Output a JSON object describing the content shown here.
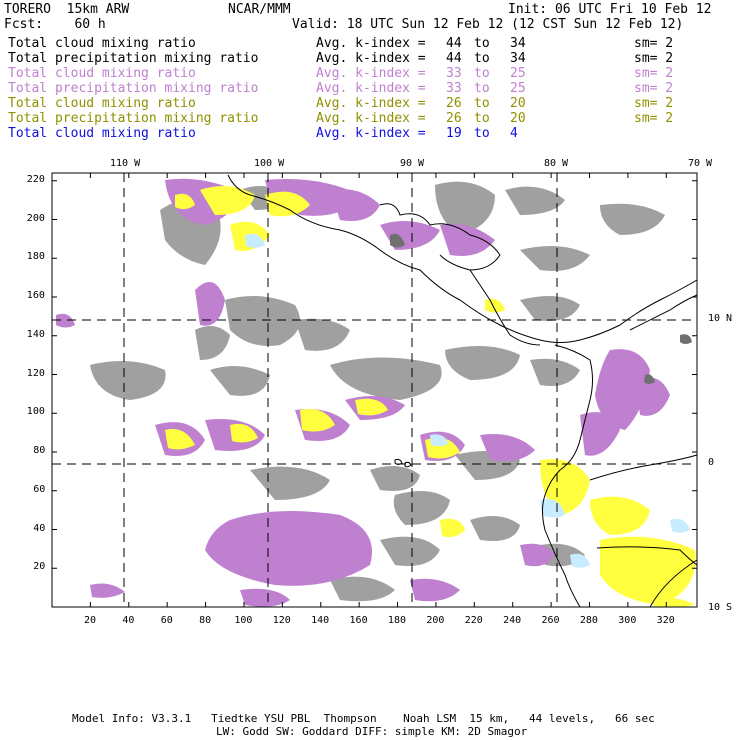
{
  "header": {
    "model": "TORERO  15km ARW",
    "org": "NCAR/MMM",
    "init": "Init: 06 UTC Fri 10 Feb 12",
    "fcst": "Fcst:    60 h",
    "valid": "Valid: 18 UTC Sun 12 Feb 12 (12 CST Sun 12 Feb 12)"
  },
  "legend": [
    {
      "field": "Total cloud mixing ratio",
      "stat": "Avg. k-index =",
      "from": "44",
      "to_word": "to",
      "to": "34",
      "sm": "sm= 2",
      "color": "#000000"
    },
    {
      "field": "Total precipitation mixing ratio",
      "stat": "Avg. k-index =",
      "from": "44",
      "to_word": "to",
      "to": "34",
      "sm": "sm= 2",
      "color": "#000000"
    },
    {
      "field": "Total cloud mixing ratio",
      "stat": "Avg. k-index =",
      "from": "33",
      "to_word": "to",
      "to": "25",
      "sm": "sm= 2",
      "color": "#c080d0"
    },
    {
      "field": "Total precipitation mixing ratio",
      "stat": "Avg. k-index =",
      "from": "33",
      "to_word": "to",
      "to": "25",
      "sm": "sm= 2",
      "color": "#c080d0"
    },
    {
      "field": "Total cloud mixing ratio",
      "stat": "Avg. k-index =",
      "from": "26",
      "to_word": "to",
      "to": "20",
      "sm": "sm= 2",
      "color": "#909000"
    },
    {
      "field": "Total precipitation mixing ratio",
      "stat": "Avg. k-index =",
      "from": "26",
      "to_word": "to",
      "to": "20",
      "sm": "sm= 2",
      "color": "#909000"
    },
    {
      "field": "Total cloud mixing ratio",
      "stat": "Avg. k-index =",
      "from": "19",
      "to_word": "to",
      "to": "4",
      "sm": "",
      "color": "#1010e0"
    }
  ],
  "axes": {
    "lon_labels": [
      "110 W",
      "100 W",
      "90 W",
      "80 W",
      "70 W"
    ],
    "lat_labels": [
      "10 N",
      "0",
      "10 S"
    ],
    "x_ticks": [
      "20",
      "40",
      "60",
      "80",
      "100",
      "120",
      "140",
      "160",
      "180",
      "200",
      "220",
      "240",
      "260",
      "280",
      "300",
      "320"
    ],
    "y_ticks": [
      "220",
      "200",
      "180",
      "160",
      "140",
      "120",
      "100",
      "80",
      "60",
      "40",
      "20"
    ],
    "grid_x_max": 336,
    "grid_y_max": 224
  },
  "shading_colors": {
    "gray": "#a0a0a0",
    "dark_gray": "#707070",
    "violet": "#c080d0",
    "yellow": "#ffff40",
    "light_blue": "#c8ecff"
  },
  "footer": {
    "line1": "Model Info: V3.3.1   Tiedtke YSU PBL  Thompson    Noah LSM  15 km,   44 levels,   66 sec",
    "line2": "LW: Godd SW: Goddard DIFF: simple KM: 2D Smagor"
  }
}
